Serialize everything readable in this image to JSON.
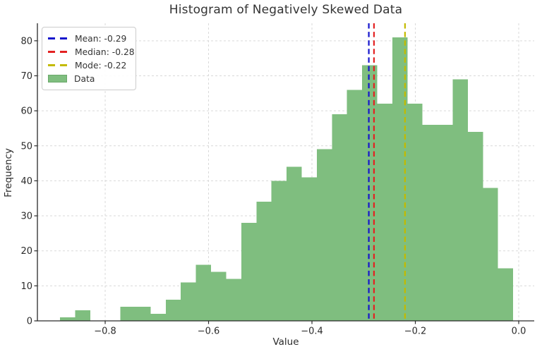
{
  "chart_data": {
    "type": "bar",
    "subtype": "histogram",
    "title": "Histogram of Negatively Skewed Data",
    "xlabel": "Value",
    "ylabel": "Frequency",
    "series_label": "Data",
    "bar_color": "#7fbe7f",
    "n_samples": 1000,
    "bin_start": -0.8874,
    "bin_width": 0.02922,
    "counts": [
      1,
      3,
      0,
      0,
      4,
      4,
      2,
      6,
      11,
      16,
      14,
      12,
      28,
      34,
      40,
      44,
      41,
      49,
      59,
      66,
      73,
      62,
      81,
      62,
      56,
      56,
      69,
      54,
      38,
      15
    ],
    "xlim": [
      -0.9311,
      0.03
    ],
    "ylim": [
      0,
      85
    ],
    "grid": "dashed",
    "grid_color": "#d9d9d9",
    "spine_color": "#2a2a2a",
    "legend_position": "upper left",
    "xticks": [
      {
        "value": -0.8,
        "label": "−0.8"
      },
      {
        "value": -0.6,
        "label": "−0.6"
      },
      {
        "value": -0.4,
        "label": "−0.4"
      },
      {
        "value": -0.2,
        "label": "−0.2"
      },
      {
        "value": 0.0,
        "label": "0.0"
      }
    ],
    "yticks": [
      {
        "value": 0,
        "label": "0"
      },
      {
        "value": 10,
        "label": "10"
      },
      {
        "value": 20,
        "label": "20"
      },
      {
        "value": 30,
        "label": "30"
      },
      {
        "value": 40,
        "label": "40"
      },
      {
        "value": 50,
        "label": "50"
      },
      {
        "value": 60,
        "label": "60"
      },
      {
        "value": 70,
        "label": "70"
      },
      {
        "value": 80,
        "label": "80"
      }
    ],
    "vlines": [
      {
        "name": "mean-line",
        "stat": "Mean",
        "value": -0.29,
        "label": "Mean: -0.29",
        "color": "#1515cc"
      },
      {
        "name": "median-line",
        "stat": "Median",
        "value": -0.28,
        "label": "Median: -0.28",
        "color": "#e32222"
      },
      {
        "name": "mode-line",
        "stat": "Mode",
        "value": -0.22,
        "label": "Mode: -0.22",
        "color": "#c3ba00"
      }
    ]
  }
}
